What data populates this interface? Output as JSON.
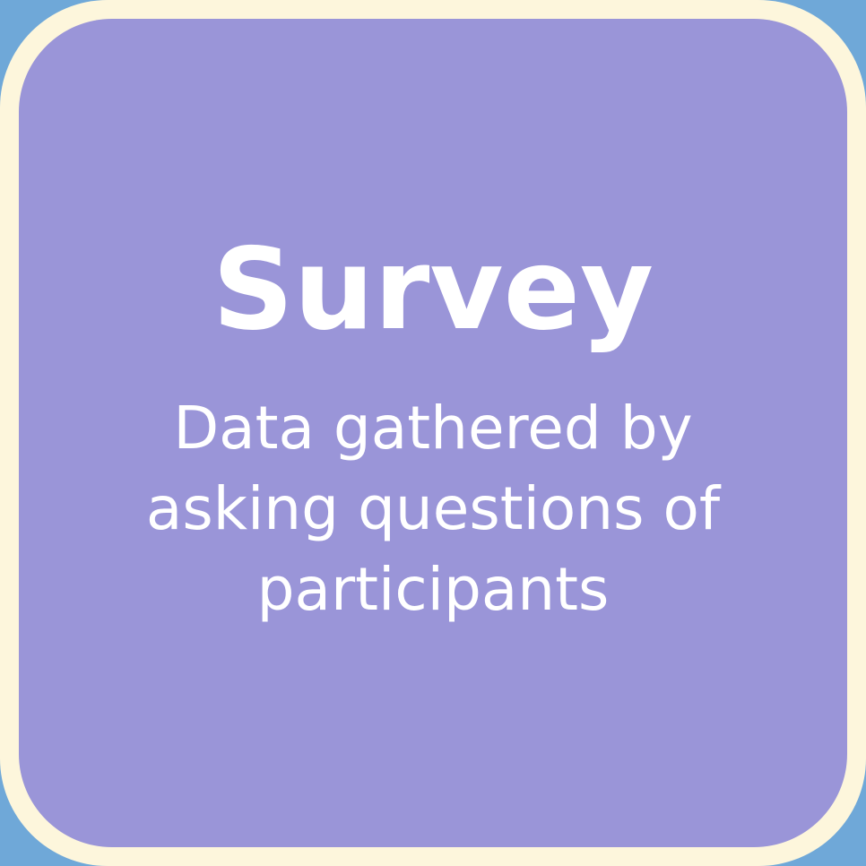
{
  "card": {
    "title": "Survey",
    "description_lines": [
      "Data gathered by",
      "asking questions of",
      "participants"
    ]
  },
  "colors": {
    "background": "#6fa8d8",
    "card_border": "#fdf6dc",
    "card_fill": "#9a95d8",
    "text": "#ffffff"
  }
}
